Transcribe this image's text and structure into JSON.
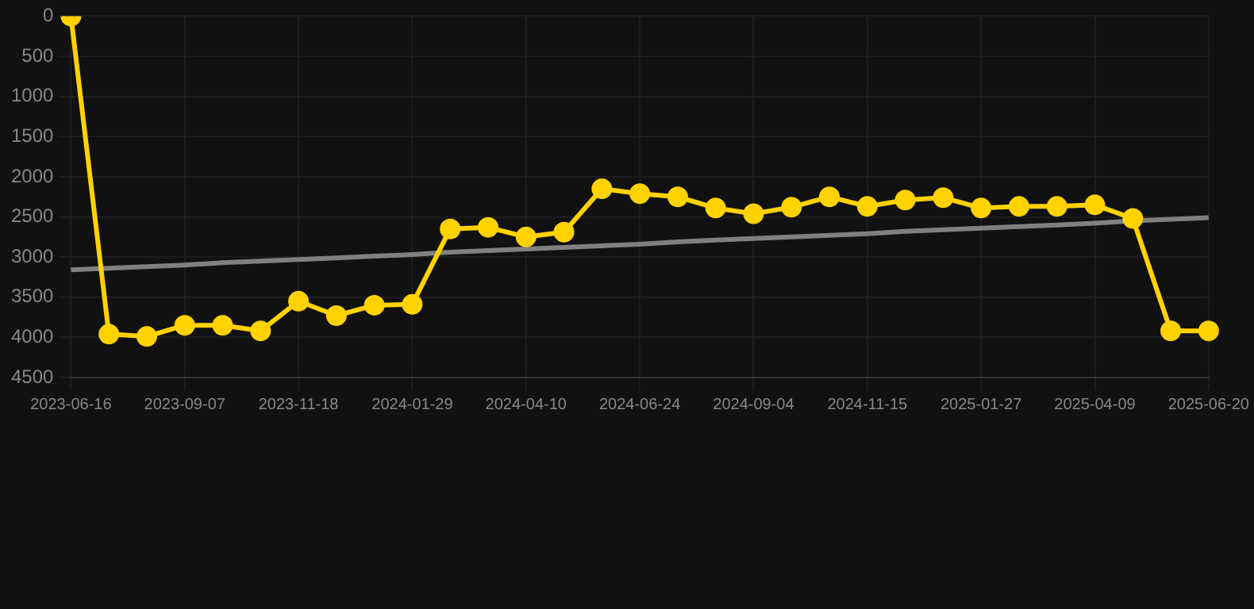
{
  "chart_data": {
    "type": "line",
    "categories": [
      "2023-06-16",
      null,
      null,
      "2023-09-07",
      null,
      null,
      "2023-11-18",
      null,
      null,
      "2024-01-29",
      null,
      null,
      "2024-04-10",
      null,
      null,
      "2024-06-24",
      null,
      null,
      "2024-09-04",
      null,
      null,
      "2024-11-15",
      null,
      null,
      "2025-01-27",
      null,
      null,
      "2025-04-09",
      null,
      null,
      "2025-06-20"
    ],
    "series": [
      {
        "color": "#ffd200",
        "marker": "circle",
        "values": [
          0,
          3960,
          3990,
          3850,
          3850,
          3920,
          3550,
          3730,
          3600,
          3590,
          2650,
          2630,
          2750,
          2690,
          2150,
          2210,
          2250,
          2390,
          2460,
          2380,
          2250,
          2370,
          2290,
          2260,
          2390,
          2370,
          2370,
          2350,
          2520,
          3920,
          3920
        ]
      },
      {
        "type": "line",
        "color": "#808080",
        "marker": "none",
        "values": [
          3160,
          3140,
          3120,
          3100,
          3070,
          3050,
          3030,
          3010,
          2990,
          2970,
          2940,
          2920,
          2900,
          2880,
          2860,
          2840,
          2810,
          2790,
          2770,
          2750,
          2730,
          2710,
          2680,
          2660,
          2640,
          2620,
          2600,
          2580,
          2550,
          2530,
          2510
        ]
      }
    ],
    "ylim": [
      4500,
      0
    ],
    "yticks": [
      0,
      500,
      1000,
      1500,
      2000,
      2500,
      3000,
      3500,
      4000,
      4500
    ],
    "grid": true,
    "legend": false,
    "line_style": "solid"
  }
}
